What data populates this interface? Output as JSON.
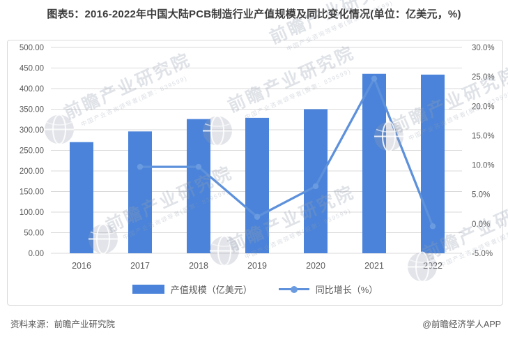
{
  "title": "图表5：2016-2022年中国大陆PCB制造行业产值规模及同比变化情况(单位：亿美元，%)",
  "footer": {
    "source": "资料来源：前瞻产业研究院",
    "credit": "@前瞻经济学人APP"
  },
  "watermark": {
    "brand": "前瞻产业研究院",
    "tagline": "中国产业咨询领导者(股票：839599)"
  },
  "colors": {
    "bar": "#4a83d9",
    "line": "#5e91db",
    "marker": "#6a9be0",
    "grid": "#d9d9d9",
    "axis_text": "#595959",
    "title_text": "#3d3d3d"
  },
  "chart_data": {
    "type": "bar+line combo",
    "title": "2016-2022年中国大陆PCB制造行业产值规模及同比变化情况",
    "units": "亿美元，%",
    "categories": [
      "2016",
      "2017",
      "2018",
      "2019",
      "2020",
      "2021",
      "2022"
    ],
    "series": [
      {
        "name": "产值规模（亿美元）",
        "type": "bar",
        "axis": "left",
        "values": [
          270,
          296,
          326,
          329,
          350,
          436,
          434
        ]
      },
      {
        "name": "同比增长（%）",
        "type": "line",
        "axis": "right",
        "values": [
          null,
          9.7,
          9.7,
          1.2,
          6.4,
          24.7,
          -0.4
        ]
      }
    ],
    "left_axis": {
      "min": 0,
      "max": 500,
      "step": 50,
      "tick_labels": [
        "0.00",
        "50.00",
        "100.00",
        "150.00",
        "200.00",
        "250.00",
        "300.00",
        "350.00",
        "400.00",
        "450.00",
        "500.00"
      ]
    },
    "right_axis": {
      "min": -5,
      "max": 30,
      "step": 5,
      "tick_labels": [
        "-5.0%",
        "0.0%",
        "5.0%",
        "10.0%",
        "15.0%",
        "20.0%",
        "25.0%",
        "30.0%"
      ]
    },
    "grid": true,
    "legend_position": "bottom"
  }
}
